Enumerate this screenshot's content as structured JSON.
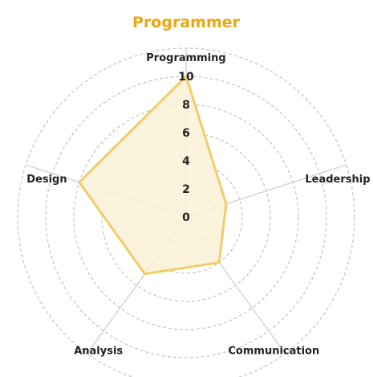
{
  "chart_data": {
    "type": "radar",
    "title": "Programmer",
    "axes": [
      "Programming",
      "Leadership",
      "Communication",
      "Analysis",
      "Design"
    ],
    "values": [
      10,
      3,
      4,
      5,
      8
    ],
    "range": [
      0,
      10
    ],
    "ticks": [
      "0",
      "2",
      "4",
      "6",
      "8",
      "10"
    ],
    "tick_values": [
      0,
      2,
      4,
      6,
      8,
      10
    ],
    "gridline_values": [
      2,
      4,
      6,
      8,
      10,
      12
    ],
    "grid": true,
    "legend": "none",
    "colors": {
      "title": "#e6a817",
      "line": "#f0cd6a",
      "fill": "#fcf1d6",
      "grid": "#c8c8c8",
      "spoke": "#cccccc"
    }
  }
}
